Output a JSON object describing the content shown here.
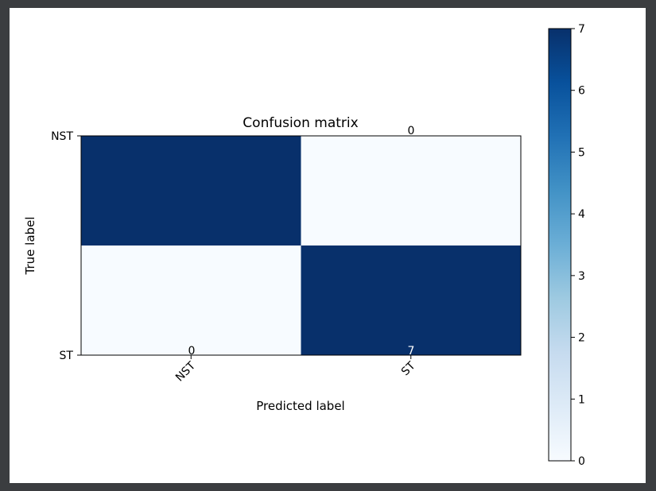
{
  "colors": {
    "window_background": "#3b3d40",
    "figure_background": "#ffffff",
    "cmap_low": "#f7fbff",
    "cmap_high": "#08306b",
    "colormap": "Blues"
  },
  "chart_data": {
    "type": "heatmap",
    "title": "Confusion matrix",
    "xlabel": "Predicted label",
    "ylabel": "True label",
    "x_categories": [
      "NST",
      "ST"
    ],
    "y_categories": [
      "NST",
      "ST"
    ],
    "values": [
      [
        7,
        0
      ],
      [
        0,
        7
      ]
    ],
    "cell_labels": [
      [
        "",
        "0"
      ],
      [
        "0",
        "7"
      ]
    ],
    "colorbar": {
      "min": 0,
      "max": 7,
      "ticks": [
        "0",
        "1",
        "2",
        "3",
        "4",
        "5",
        "6",
        "7"
      ],
      "position": "right"
    },
    "x_tick_rotation": "45",
    "grid": false
  }
}
